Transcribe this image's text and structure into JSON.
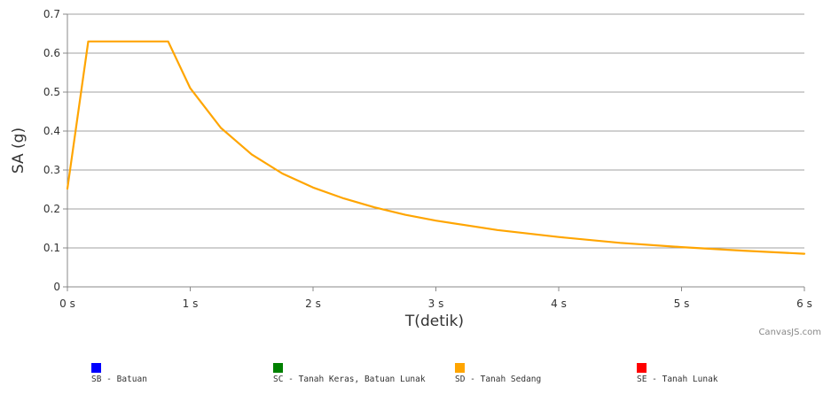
{
  "chart_data": {
    "type": "line",
    "title": "",
    "xlabel": "T(detik)",
    "ylabel": "SA (g)",
    "xlim": [
      0,
      6
    ],
    "ylim": [
      0,
      0.7
    ],
    "x_ticks": [
      "0 s",
      "1 s",
      "2 s",
      "3 s",
      "4 s",
      "5 s",
      "6 s"
    ],
    "y_ticks": [
      "0",
      "0.1",
      "0.2",
      "0.3",
      "0.4",
      "0.5",
      "0.6",
      "0.7"
    ],
    "grid": "horizontal",
    "credit": "CanvasJS.com",
    "series": [
      {
        "name": "SD - Tanah Sedang",
        "color": "#ffa500",
        "x": [
          0,
          0.17,
          0.82,
          1.0,
          1.25,
          1.5,
          1.75,
          2.0,
          2.25,
          2.5,
          2.75,
          3.0,
          3.5,
          4.0,
          4.5,
          5.0,
          5.5,
          6.0
        ],
        "y": [
          0.252,
          0.63,
          0.63,
          0.51,
          0.408,
          0.34,
          0.291,
          0.255,
          0.227,
          0.204,
          0.185,
          0.17,
          0.146,
          0.128,
          0.113,
          0.102,
          0.093,
          0.085
        ]
      }
    ],
    "legend": {
      "position": "bottom",
      "items": [
        {
          "label": "SB - Batuan",
          "color": "#0000ff"
        },
        {
          "label": "SC - Tanah Keras, Batuan Lunak",
          "color": "#008000"
        },
        {
          "label": "SD - Tanah Sedang",
          "color": "#ffa500"
        },
        {
          "label": "SE - Tanah Lunak",
          "color": "#ff0000"
        }
      ]
    }
  }
}
